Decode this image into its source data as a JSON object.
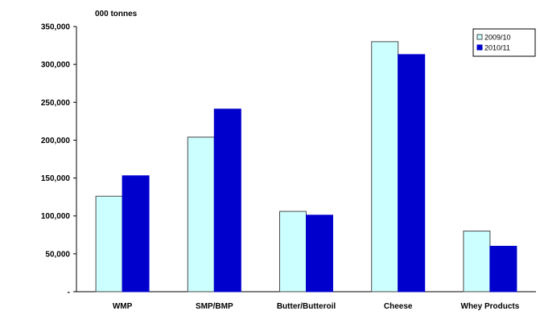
{
  "chart_data": {
    "type": "bar",
    "unit_label": "000 tonnes",
    "categories": [
      "WMP",
      "SMP/BMP",
      "Butter/Butteroil",
      "Cheese",
      "Whey Products"
    ],
    "series": [
      {
        "name": "2009/10",
        "color": "#ccffff",
        "stroke": "#4a4a4a",
        "values": [
          126000,
          204000,
          106000,
          330000,
          80000
        ]
      },
      {
        "name": "2010/11",
        "color": "#0000cc",
        "stroke": "#0000cc",
        "values": [
          153000,
          241000,
          101000,
          313000,
          60000
        ]
      }
    ],
    "ylim": [
      0,
      350000
    ],
    "yticks": [
      0,
      50000,
      100000,
      150000,
      200000,
      250000,
      300000,
      350000
    ],
    "ytick_labels": [
      "-",
      "50,000",
      "100,000",
      "150,000",
      "200,000",
      "250,000",
      "300,000",
      "350,000"
    ],
    "grid": false,
    "legend_position": "top-right"
  }
}
